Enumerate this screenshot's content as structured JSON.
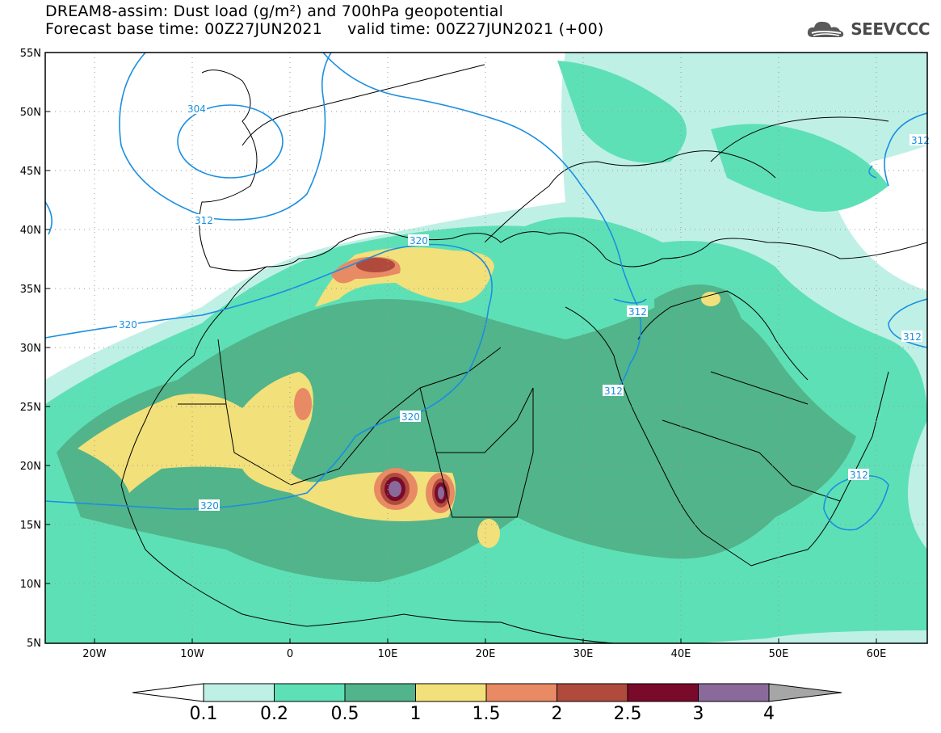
{
  "header": {
    "title_line1": "DREAM8-assim: Dust load (g/m²) and 700hPa geopotential",
    "title_line2": "Forecast base time: 00Z27JUN2021     valid time: 00Z27JUN2021 (+00)"
  },
  "brand": {
    "name": "SEEVCCC",
    "icon": "cloud-logo-icon"
  },
  "axes": {
    "lat_labels": [
      "55N",
      "50N",
      "45N",
      "40N",
      "35N",
      "30N",
      "25N",
      "20N",
      "15N",
      "10N",
      "5N"
    ],
    "lon_labels": [
      "20W",
      "10W",
      "0",
      "10E",
      "20E",
      "30E",
      "40E",
      "50E",
      "60E"
    ]
  },
  "contours": {
    "labels": [
      "304",
      "312",
      "312",
      "320",
      "320",
      "320",
      "320",
      "312",
      "312",
      "312",
      "312"
    ]
  },
  "colorbar": {
    "ticks": [
      "0.1",
      "0.2",
      "0.5",
      "1",
      "1.5",
      "2",
      "2.5",
      "3",
      "4"
    ],
    "colors": [
      "#bff0e6",
      "#5ee0b6",
      "#52b48a",
      "#f2e07a",
      "#e88a64",
      "#b04a3c",
      "#7a0a2a",
      "#8a6a9a"
    ],
    "under_color": "#ffffff",
    "over_color": "#a6a6a6"
  },
  "colors": {
    "contour_line": "#1a8fe0",
    "border_line": "#000000",
    "grid": "#999999"
  }
}
